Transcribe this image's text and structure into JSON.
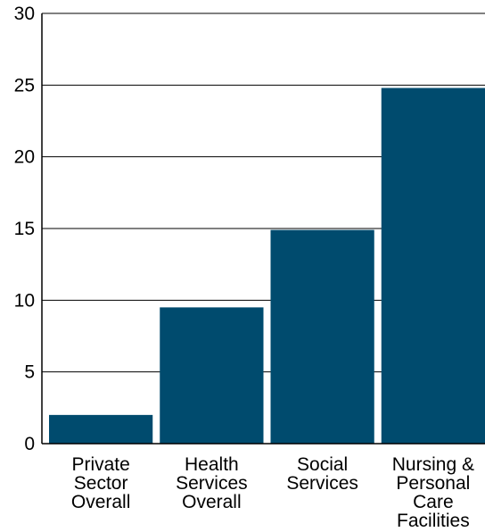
{
  "chart_data": {
    "type": "bar",
    "title": "",
    "xlabel": "",
    "ylabel": "",
    "categories": [
      [
        "Private",
        "Sector",
        "Overall"
      ],
      [
        "Health",
        "Services",
        "Overall"
      ],
      [
        "Social",
        "Services"
      ],
      [
        "Nursing &",
        "Personal",
        "Care",
        "Facilities"
      ]
    ],
    "values": [
      2.0,
      9.5,
      14.9,
      24.8
    ],
    "ylim": [
      0,
      30
    ],
    "yticks": [
      0,
      5,
      10,
      15,
      20,
      25,
      30
    ],
    "grid": true,
    "legend": "none",
    "colors": {
      "bar": "#004b6e",
      "grid": "#000000",
      "axis": "#000000"
    }
  }
}
